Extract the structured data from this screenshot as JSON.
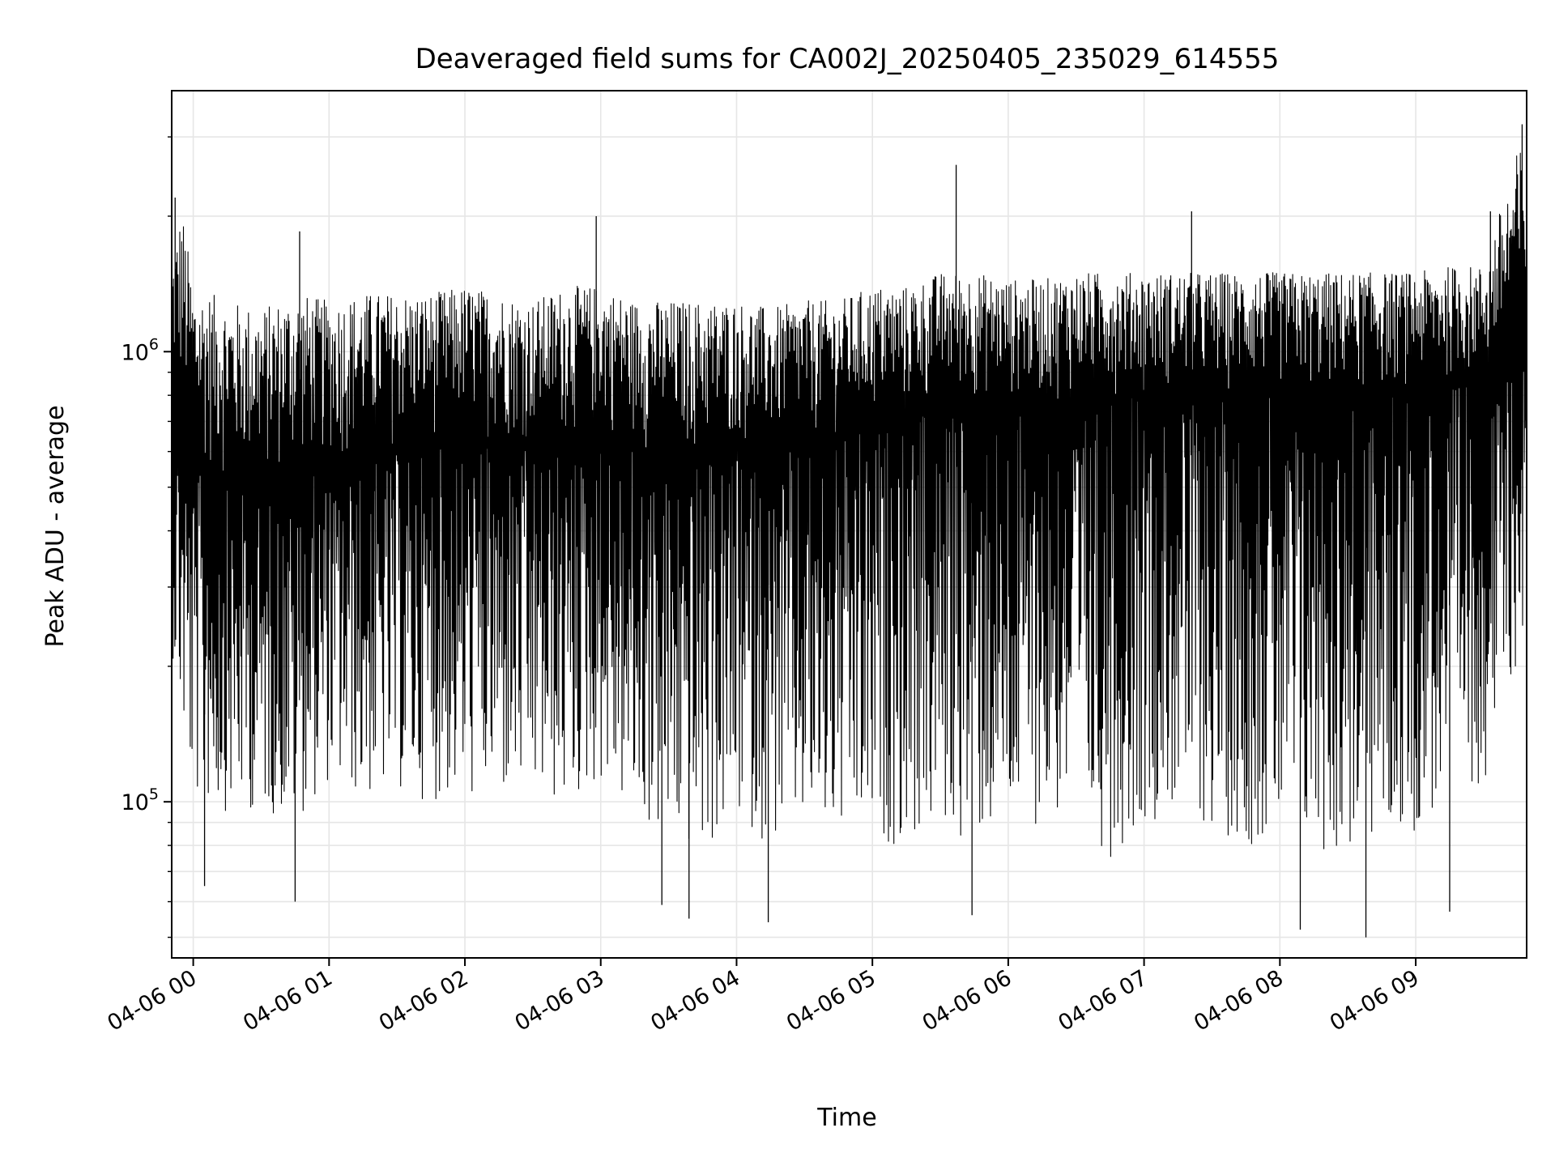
{
  "chart_data": {
    "type": "line",
    "title": "Deaveraged field sums for CA002J_20250405_235029_614555",
    "xlabel": "Time",
    "ylabel": "Peak ADU - average",
    "y_scale": "log",
    "ylim": [
      45000,
      3800000
    ],
    "xlim": [
      "2025-04-05T23:50:29",
      "2025-04-06T09:49:00"
    ],
    "grid": true,
    "x_ticks": [
      {
        "value": "2025-04-06T00:00",
        "label": "04-06 00"
      },
      {
        "value": "2025-04-06T01:00",
        "label": "04-06 01"
      },
      {
        "value": "2025-04-06T02:00",
        "label": "04-06 02"
      },
      {
        "value": "2025-04-06T03:00",
        "label": "04-06 03"
      },
      {
        "value": "2025-04-06T04:00",
        "label": "04-06 04"
      },
      {
        "value": "2025-04-06T05:00",
        "label": "04-06 05"
      },
      {
        "value": "2025-04-06T06:00",
        "label": "04-06 06"
      },
      {
        "value": "2025-04-06T07:00",
        "label": "04-06 07"
      },
      {
        "value": "2025-04-06T08:00",
        "label": "04-06 08"
      },
      {
        "value": "2025-04-06T09:00",
        "label": "04-06 09"
      }
    ],
    "y_major_ticks": [
      {
        "value": 100000,
        "base": "10",
        "exp": "5"
      },
      {
        "value": 1000000,
        "base": "10",
        "exp": "6"
      }
    ],
    "series": [
      {
        "color": "#000000",
        "x": [
          "2025-04-05T23:50:29",
          "2025-04-05T23:55:00",
          "2025-04-06T00:00:00",
          "2025-04-06T00:15:00",
          "2025-04-06T00:30:00",
          "2025-04-06T00:45:00",
          "2025-04-06T01:00:00",
          "2025-04-06T01:15:00",
          "2025-04-06T01:30:00",
          "2025-04-06T01:45:00",
          "2025-04-06T02:00:00",
          "2025-04-06T02:15:00",
          "2025-04-06T02:30:00",
          "2025-04-06T02:45:00",
          "2025-04-06T03:00:00",
          "2025-04-06T03:15:00",
          "2025-04-06T03:30:00",
          "2025-04-06T03:45:00",
          "2025-04-06T04:00:00",
          "2025-04-06T04:15:00",
          "2025-04-06T04:30:00",
          "2025-04-06T04:45:00",
          "2025-04-06T05:00:00",
          "2025-04-06T05:15:00",
          "2025-04-06T05:30:00",
          "2025-04-06T05:45:00",
          "2025-04-06T06:00:00",
          "2025-04-06T06:15:00",
          "2025-04-06T06:30:00",
          "2025-04-06T06:45:00",
          "2025-04-06T07:00:00",
          "2025-04-06T07:15:00",
          "2025-04-06T07:30:00",
          "2025-04-06T07:45:00",
          "2025-04-06T08:00:00",
          "2025-04-06T08:15:00",
          "2025-04-06T08:30:00",
          "2025-04-06T08:45:00",
          "2025-04-06T09:00:00",
          "2025-04-06T09:15:00",
          "2025-04-06T09:30:00",
          "2025-04-06T09:45:00",
          "2025-04-06T09:49:00"
        ],
        "upper": [
          1600000,
          2100000,
          1400000,
          1300000,
          1250000,
          1350000,
          1300000,
          1350000,
          1350000,
          1350000,
          1400000,
          1350000,
          1300000,
          1400000,
          1400000,
          1300000,
          1300000,
          1300000,
          1300000,
          1250000,
          1300000,
          1300000,
          1400000,
          1400000,
          1500000,
          1500000,
          1450000,
          1450000,
          1500000,
          1500000,
          1500000,
          1500000,
          1500000,
          1500000,
          1500000,
          1500000,
          1500000,
          1500000,
          1500000,
          1550000,
          1550000,
          2800000,
          3000000
        ],
        "typical": [
          800000,
          700000,
          550000,
          500000,
          480000,
          520000,
          550000,
          560000,
          600000,
          620000,
          650000,
          620000,
          600000,
          620000,
          650000,
          600000,
          580000,
          560000,
          600000,
          580000,
          620000,
          640000,
          680000,
          700000,
          750000,
          760000,
          760000,
          760000,
          780000,
          800000,
          800000,
          800000,
          780000,
          800000,
          800000,
          780000,
          780000,
          800000,
          820000,
          840000,
          850000,
          900000,
          950000
        ],
        "lower": [
          220000,
          140000,
          100000,
          95000,
          95000,
          90000,
          110000,
          100000,
          105000,
          100000,
          100000,
          100000,
          100000,
          95000,
          110000,
          90000,
          80000,
          75000,
          90000,
          80000,
          85000,
          80000,
          80000,
          80000,
          85000,
          80000,
          85000,
          90000,
          90000,
          75000,
          90000,
          95000,
          85000,
          80000,
          80000,
          75000,
          75000,
          80000,
          85000,
          100000,
          110000,
          200000,
          250000
        ],
        "spike_highs": [
          {
            "x": "2025-04-05T23:52:00",
            "y": 2200000
          },
          {
            "x": "2025-04-06T00:47:00",
            "y": 1850000
          },
          {
            "x": "2025-04-06T02:58:00",
            "y": 2000000
          },
          {
            "x": "2025-04-06T05:37:00",
            "y": 2600000
          },
          {
            "x": "2025-04-06T07:21:00",
            "y": 2050000
          },
          {
            "x": "2025-04-06T09:33:00",
            "y": 2050000
          },
          {
            "x": "2025-04-06T09:47:00",
            "y": 3200000
          }
        ],
        "spike_lows": [
          {
            "x": "2025-04-06T00:05:00",
            "y": 65000
          },
          {
            "x": "2025-04-06T00:45:00",
            "y": 60000
          },
          {
            "x": "2025-04-06T03:27:00",
            "y": 59000
          },
          {
            "x": "2025-04-06T03:39:00",
            "y": 55000
          },
          {
            "x": "2025-04-06T04:14:00",
            "y": 54000
          },
          {
            "x": "2025-04-06T05:44:00",
            "y": 56000
          },
          {
            "x": "2025-04-06T08:09:00",
            "y": 52000
          },
          {
            "x": "2025-04-06T08:38:00",
            "y": 50000
          },
          {
            "x": "2025-04-06T09:15:00",
            "y": 57000
          }
        ]
      }
    ]
  }
}
